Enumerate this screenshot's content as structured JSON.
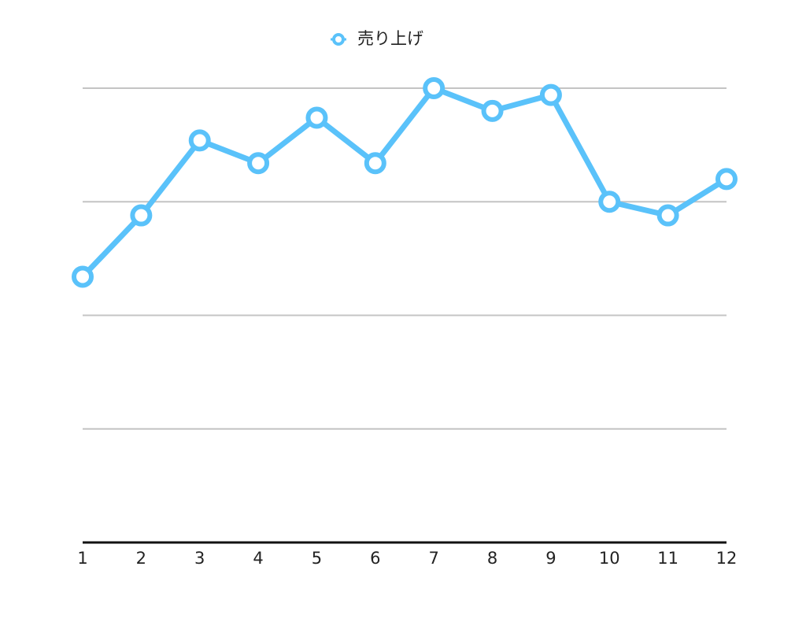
{
  "chart_data": {
    "type": "line",
    "categories": [
      "1",
      "2",
      "3",
      "4",
      "5",
      "6",
      "7",
      "8",
      "9",
      "10",
      "11",
      "12"
    ],
    "series": [
      {
        "name": "売り上げ",
        "color": "#5ac2fa",
        "values": [
          58.5,
          72,
          88.5,
          83.5,
          93.5,
          83.5,
          100,
          95,
          98.5,
          75,
          72,
          80
        ]
      }
    ],
    "ylim": [
      0,
      100
    ],
    "yticks": [
      0,
      25,
      50,
      75,
      100
    ],
    "grid": true,
    "legend": "top"
  }
}
